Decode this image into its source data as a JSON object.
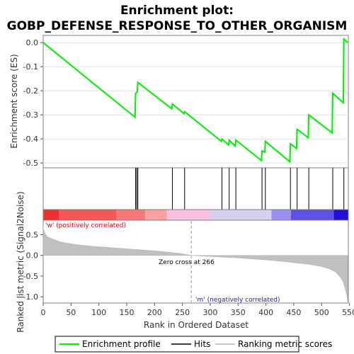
{
  "chart_data": {
    "type": "line",
    "title_line1": "Enrichment plot:",
    "title_line2": "GOBP_DEFENSE_RESPONSE_TO_OTHER_ORGANISM",
    "es_panel": {
      "ylabel": "Enrichment score (ES)",
      "ylim": [
        -0.52,
        0.03
      ],
      "yticks": [
        0.0,
        -0.1,
        -0.2,
        -0.3,
        -0.4,
        -0.5
      ],
      "ytick_labels": [
        "0.0",
        "-0.1",
        "-0.2",
        "-0.3",
        "-0.4",
        "-0.5"
      ],
      "series": [
        {
          "name": "Enrichment profile",
          "color": "#00ee00",
          "x": [
            0,
            165,
            166,
            169,
            170,
            231,
            232,
            253,
            254,
            320,
            321,
            333,
            334,
            345,
            346,
            392,
            393,
            398,
            399,
            443,
            444,
            455,
            456,
            476,
            477,
            519,
            520,
            539,
            540,
            547
          ],
          "y": [
            0.0,
            -0.31,
            -0.21,
            -0.205,
            -0.165,
            -0.275,
            -0.255,
            -0.295,
            -0.287,
            -0.41,
            -0.4,
            -0.425,
            -0.405,
            -0.43,
            -0.405,
            -0.49,
            -0.45,
            -0.455,
            -0.41,
            -0.495,
            -0.42,
            -0.44,
            -0.36,
            -0.395,
            -0.3,
            -0.375,
            -0.21,
            -0.25,
            0.015,
            0.0
          ]
        }
      ]
    },
    "hits_panel": {
      "hit_positions": [
        166,
        168,
        170,
        232,
        254,
        321,
        334,
        346,
        393,
        399,
        444,
        456,
        477,
        520,
        540
      ]
    },
    "color_bar": {
      "segments": [
        {
          "from": 0,
          "to": 28,
          "color": "#f03030"
        },
        {
          "from": 28,
          "to": 132,
          "color": "#f55757"
        },
        {
          "from": 132,
          "to": 183,
          "color": "#f87878"
        },
        {
          "from": 183,
          "to": 222,
          "color": "#f9a0a0"
        },
        {
          "from": 222,
          "to": 300,
          "color": "#f9c0e0"
        },
        {
          "from": 300,
          "to": 410,
          "color": "#d8d0f0"
        },
        {
          "from": 410,
          "to": 445,
          "color": "#9a90f0"
        },
        {
          "from": 445,
          "to": 522,
          "color": "#6050e8"
        },
        {
          "from": 522,
          "to": 548,
          "color": "#2010d8"
        }
      ]
    },
    "metric_panel": {
      "ylabel": "Ranked list metric (Signal2Noise)",
      "ylim": [
        -1.15,
        0.85
      ],
      "yticks": [
        0.5,
        0.0,
        -0.5,
        -1.0
      ],
      "ytick_labels": [
        "0.5",
        "0.0",
        "-0.5",
        "-1.0"
      ],
      "positive_label": "'w' (positively correlated)",
      "negative_label": "'m' (negatively correlated)",
      "zero_cross_label": "Zero cross at 266",
      "zero_cross": 266,
      "profile_x": [
        0,
        1,
        3,
        5,
        8,
        12,
        20,
        30,
        45,
        60,
        80,
        100,
        130,
        160,
        200,
        230,
        250,
        266,
        290,
        320,
        350,
        380,
        410,
        440,
        460,
        480,
        500,
        515,
        525,
        532,
        538,
        542,
        545,
        547
      ],
      "profile_y": [
        0.72,
        0.62,
        0.55,
        0.5,
        0.45,
        0.42,
        0.38,
        0.33,
        0.29,
        0.26,
        0.23,
        0.21,
        0.18,
        0.15,
        0.11,
        0.07,
        0.04,
        0.0,
        -0.02,
        -0.04,
        -0.06,
        -0.09,
        -0.12,
        -0.16,
        -0.19,
        -0.22,
        -0.27,
        -0.33,
        -0.4,
        -0.5,
        -0.62,
        -0.78,
        -0.95,
        -1.12
      ]
    },
    "xaxis": {
      "label": "Rank in Ordered Dataset",
      "xlim": [
        0,
        548
      ],
      "ticks": [
        0,
        50,
        100,
        150,
        200,
        250,
        300,
        350,
        400,
        450,
        500,
        550
      ],
      "tick_labels": [
        "0",
        "50",
        "100",
        "150",
        "200",
        "250",
        "300",
        "350",
        "400",
        "450",
        "500",
        "550"
      ]
    },
    "legend": {
      "entries": [
        {
          "label": "Enrichment profile",
          "color": "#00ee00"
        },
        {
          "label": "Hits",
          "color": "#000000"
        },
        {
          "label": "Ranking metric scores",
          "color": "#c8c8c8"
        }
      ]
    }
  }
}
